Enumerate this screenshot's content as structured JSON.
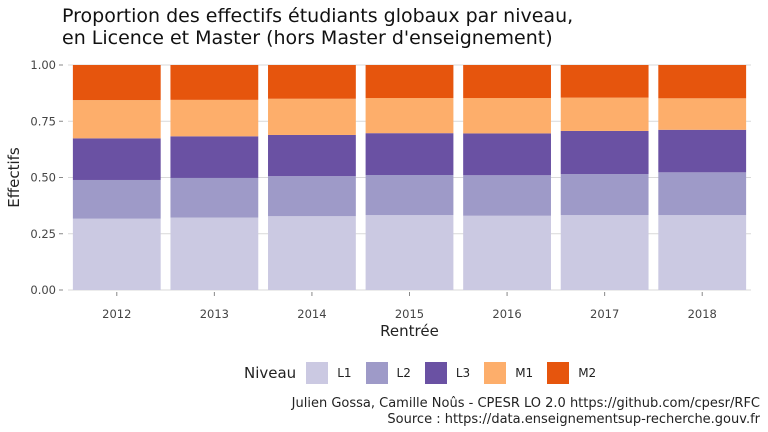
{
  "title_line1": "Proportion des effectifs étudiants globaux par niveau,",
  "title_line2": "en Licence et Master (hors Master d'enseignement)",
  "caption_line1": "Julien Gossa, Camille Noûs - CPESR LO 2.0 https://github.com/cpesr/RFC",
  "caption_line2": "Source : https://data.enseignementsup-recherche.gouv.fr",
  "chart_data": {
    "type": "bar",
    "stacked": true,
    "title": "Proportion des effectifs étudiants globaux par niveau, en Licence et Master (hors Master d'enseignement)",
    "xlabel": "Rentrée",
    "ylabel": "Effectifs",
    "ylim": [
      0,
      1
    ],
    "yticks": [
      0,
      0.25,
      0.5,
      0.75,
      1
    ],
    "ytick_labels": [
      "0.00",
      "0.25",
      "0.50",
      "0.75",
      "1.00"
    ],
    "grid": true,
    "legend_title": "Niveau",
    "legend_position": "bottom",
    "categories": [
      "2012",
      "2013",
      "2014",
      "2015",
      "2016",
      "2017",
      "2018"
    ],
    "series": [
      {
        "name": "L1",
        "color": "#cbc9e2",
        "values": [
          0.317,
          0.322,
          0.328,
          0.333,
          0.33,
          0.333,
          0.333
        ]
      },
      {
        "name": "L2",
        "color": "#9e9ac8",
        "values": [
          0.172,
          0.176,
          0.178,
          0.178,
          0.18,
          0.182,
          0.19
        ]
      },
      {
        "name": "L3",
        "color": "#6a51a3",
        "values": [
          0.185,
          0.185,
          0.183,
          0.186,
          0.186,
          0.192,
          0.189
        ]
      },
      {
        "name": "M1",
        "color": "#fdae6b",
        "values": [
          0.17,
          0.162,
          0.161,
          0.156,
          0.157,
          0.148,
          0.14
        ]
      },
      {
        "name": "M2",
        "color": "#e6550d",
        "values": [
          0.156,
          0.155,
          0.15,
          0.147,
          0.147,
          0.145,
          0.148
        ]
      }
    ]
  }
}
